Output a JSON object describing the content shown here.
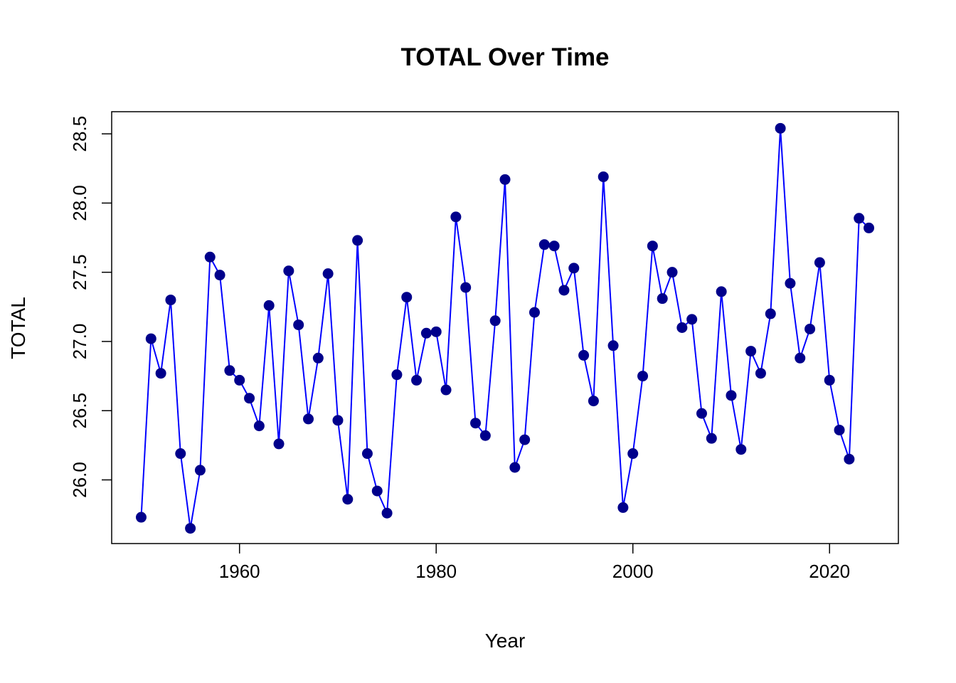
{
  "chart_data": {
    "type": "line",
    "title": "TOTAL Over Time",
    "xlabel": "Year",
    "ylabel": "TOTAL",
    "xlim": [
      1947,
      2027
    ],
    "ylim": [
      25.54,
      28.66
    ],
    "x_ticks": [
      1960,
      1980,
      2000,
      2020
    ],
    "y_ticks": [
      "26.0",
      "26.5",
      "27.0",
      "27.5",
      "28.0",
      "28.5"
    ],
    "grid": false,
    "legend": "none",
    "line_color": "#0000ff",
    "point_color": "#00008b",
    "series": [
      {
        "x": [
          1950,
          1951,
          1952,
          1953,
          1954,
          1955,
          1956,
          1957,
          1958,
          1959,
          1960,
          1961,
          1962,
          1963,
          1964,
          1965,
          1966,
          1967,
          1968,
          1969,
          1970,
          1971,
          1972,
          1973,
          1974,
          1975,
          1976,
          1977,
          1978,
          1979,
          1980,
          1981,
          1982,
          1983,
          1984,
          1985,
          1986,
          1987,
          1988,
          1989,
          1990,
          1991,
          1992,
          1993,
          1994,
          1995,
          1996,
          1997,
          1998,
          1999,
          2000,
          2001,
          2002,
          2003,
          2004,
          2005,
          2006,
          2007,
          2008,
          2009,
          2010,
          2011,
          2012,
          2013,
          2014,
          2015,
          2016,
          2017,
          2018,
          2019,
          2020,
          2021,
          2022,
          2023,
          2024
        ],
        "values": [
          25.73,
          27.02,
          26.77,
          27.3,
          26.19,
          25.65,
          26.07,
          27.61,
          27.48,
          26.79,
          26.72,
          26.59,
          26.39,
          27.26,
          26.26,
          27.51,
          27.12,
          26.44,
          26.88,
          27.49,
          26.43,
          25.86,
          27.73,
          26.19,
          25.92,
          25.76,
          26.76,
          27.32,
          26.72,
          27.06,
          27.07,
          26.65,
          27.9,
          27.39,
          26.41,
          26.32,
          27.15,
          28.17,
          26.09,
          26.29,
          27.21,
          27.7,
          27.69,
          27.37,
          27.53,
          26.9,
          26.57,
          28.19,
          26.97,
          25.8,
          26.19,
          26.75,
          27.69,
          27.31,
          27.5,
          27.1,
          27.16,
          26.48,
          26.3,
          27.36,
          26.61,
          26.22,
          26.93,
          26.77,
          27.2,
          28.54,
          27.42,
          26.88,
          27.09,
          27.57,
          26.72,
          26.36,
          26.15,
          27.89,
          27.82
        ]
      }
    ]
  }
}
